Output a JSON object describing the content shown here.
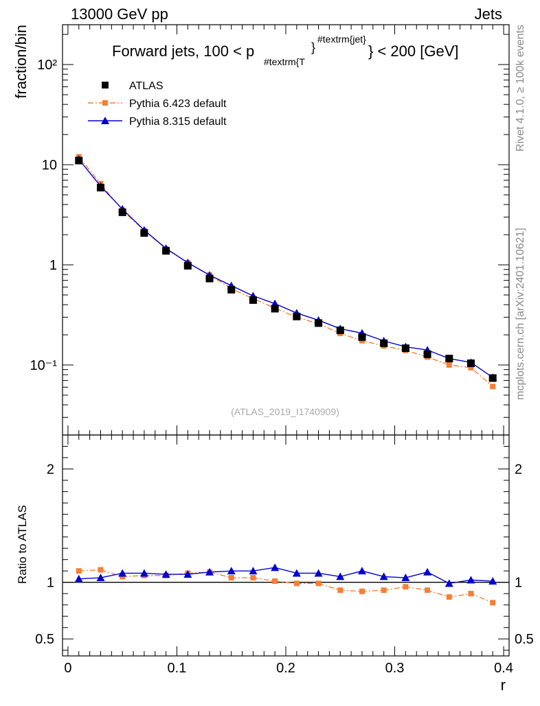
{
  "header": {
    "left": "13000 GeV pp",
    "right": "Jets"
  },
  "side_labels": {
    "rivet": "Rivet 4.1.0, ≥ 100k events",
    "mcplots": "mcplots.cern.ch [arXiv:2401.10621]"
  },
  "chart_data": {
    "type": "line",
    "title_parts": {
      "pre": "Forward jets, 100 < p",
      "sub": "#textrm{T",
      "brace": "}",
      "sup": "#textrm{jet}",
      "post": "} < 200 [GeV]"
    },
    "watermark": "(ATLAS_2019_I1740909)",
    "xlabel": "r",
    "ylabel": "fraction/bin",
    "ratio_ylabel": "Ratio to ATLAS",
    "xlim": [
      -0.005,
      0.405
    ],
    "ylim_log": [
      0.02,
      250
    ],
    "ratio_ylim": [
      0.35,
      2.3
    ],
    "x_ticks": [
      {
        "v": 0,
        "label": "0"
      },
      {
        "v": 0.1,
        "label": "0.1"
      },
      {
        "v": 0.2,
        "label": "0.2"
      },
      {
        "v": 0.3,
        "label": "0.3"
      },
      {
        "v": 0.4,
        "label": "0.4"
      }
    ],
    "y_ticks": [
      {
        "v": 0.1,
        "label": "10⁻¹"
      },
      {
        "v": 1,
        "label": "1"
      },
      {
        "v": 10,
        "label": "10"
      },
      {
        "v": 100,
        "label": "10²"
      }
    ],
    "ratio_ticks": [
      {
        "v": 0.5,
        "label": "0.5"
      },
      {
        "v": 1,
        "label": "1"
      },
      {
        "v": 2,
        "label": "2"
      }
    ],
    "x": [
      0.01,
      0.03,
      0.05,
      0.07,
      0.09,
      0.11,
      0.13,
      0.15,
      0.17,
      0.19,
      0.21,
      0.23,
      0.25,
      0.27,
      0.29,
      0.31,
      0.33,
      0.35,
      0.37,
      0.39
    ],
    "series": [
      {
        "name": "ATLAS",
        "color": "#000000",
        "style": "data",
        "values": [
          11.0,
          5.9,
          3.35,
          2.08,
          1.38,
          0.98,
          0.73,
          0.565,
          0.445,
          0.365,
          0.305,
          0.262,
          0.222,
          0.19,
          0.165,
          0.147,
          0.128,
          0.116,
          0.104,
          0.074
        ],
        "ratio": [
          1,
          1,
          1,
          1,
          1,
          1,
          1,
          1,
          1,
          1,
          1,
          1,
          1,
          1,
          1,
          1,
          1,
          1,
          1,
          1
        ]
      },
      {
        "name": "Pythia 6.423 default",
        "color": "#f57f36",
        "style": "dashdot",
        "values": [
          12.0,
          6.45,
          3.5,
          2.2,
          1.44,
          1.05,
          0.79,
          0.58,
          0.46,
          0.37,
          0.3,
          0.258,
          0.207,
          0.175,
          0.155,
          0.14,
          0.12,
          0.1,
          0.094,
          0.061
        ],
        "ratio": [
          1.1,
          1.11,
          1.05,
          1.06,
          1.06,
          1.08,
          1.09,
          1.04,
          1.04,
          1.01,
          0.99,
          0.99,
          0.93,
          0.92,
          0.93,
          0.96,
          0.93,
          0.87,
          0.9,
          0.82
        ]
      },
      {
        "name": "Pythia 8.315 default",
        "color": "#0000cd",
        "style": "solid",
        "values": [
          11.3,
          6.1,
          3.6,
          2.22,
          1.46,
          1.05,
          0.79,
          0.62,
          0.49,
          0.41,
          0.33,
          0.28,
          0.23,
          0.208,
          0.174,
          0.152,
          0.141,
          0.116,
          0.106,
          0.075
        ],
        "ratio": [
          1.03,
          1.04,
          1.08,
          1.08,
          1.07,
          1.07,
          1.09,
          1.1,
          1.1,
          1.13,
          1.08,
          1.08,
          1.05,
          1.1,
          1.05,
          1.04,
          1.09,
          0.99,
          1.02,
          1.01
        ]
      }
    ]
  }
}
